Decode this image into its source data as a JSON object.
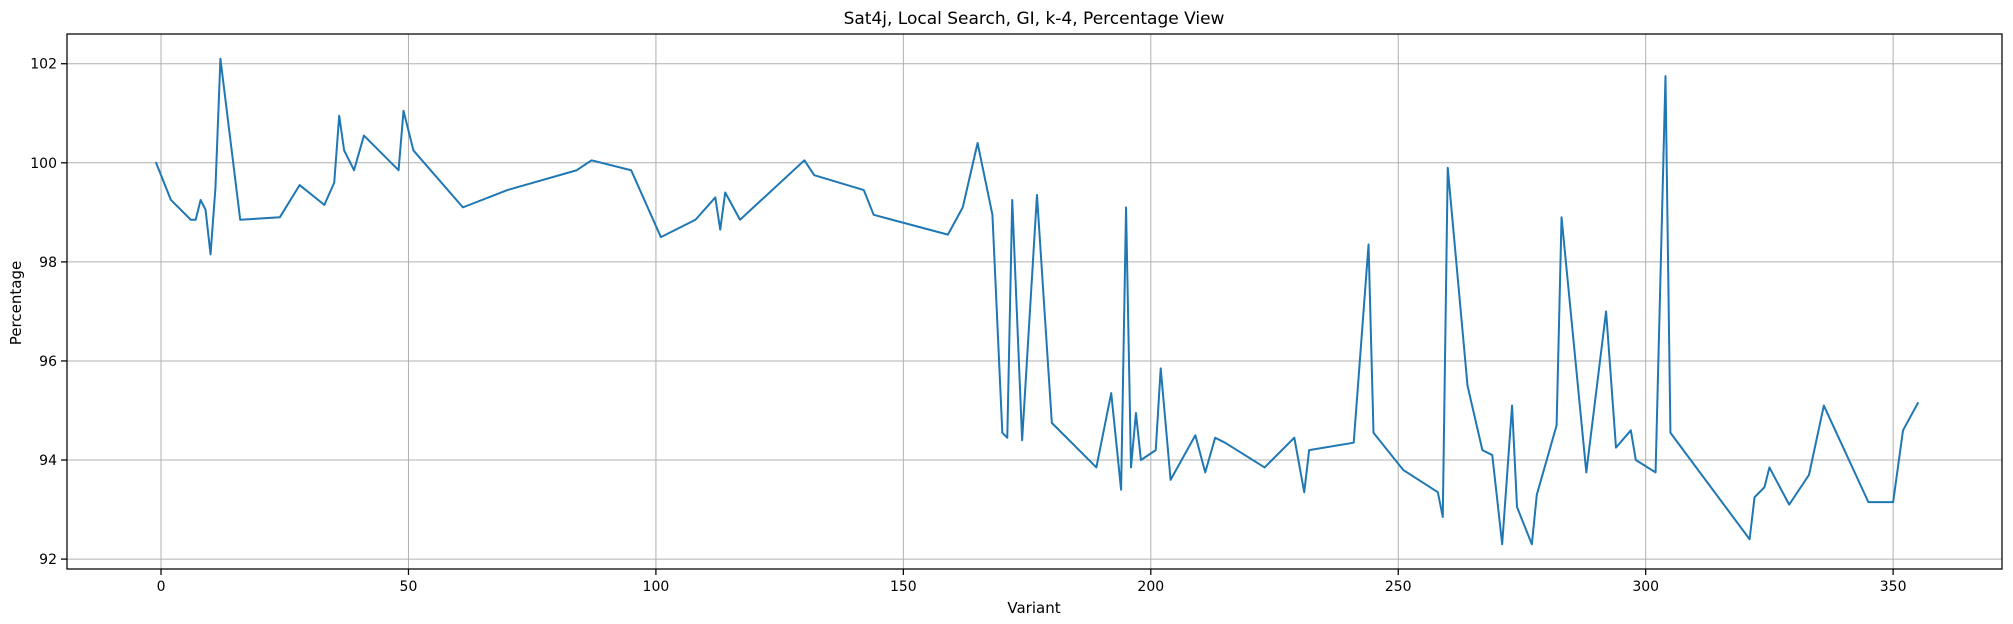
{
  "chart_data": {
    "type": "line",
    "title": "Sat4j, Local Search, GI, k-4, Percentage View",
    "xlabel": "Variant",
    "ylabel": "Percentage",
    "xlim": [
      -19,
      372
    ],
    "ylim": [
      91.8,
      102.6
    ],
    "xticks": [
      0,
      50,
      100,
      150,
      200,
      250,
      300,
      350
    ],
    "yticks": [
      92,
      94,
      96,
      98,
      100,
      102
    ],
    "grid": true,
    "series_color": "#1f77b4",
    "series": [
      {
        "x": [
          -1,
          2,
          6,
          7,
          8,
          9,
          10,
          11,
          12,
          16,
          24,
          28,
          33,
          35,
          36,
          37,
          39,
          41,
          48,
          49,
          51,
          61,
          70,
          84,
          87,
          95,
          101,
          108,
          112,
          113,
          114,
          117,
          130,
          132,
          142,
          144,
          159,
          162,
          165,
          168,
          170,
          171,
          172,
          174,
          177,
          180,
          189,
          192,
          194,
          195,
          196,
          197,
          198,
          201,
          202,
          204,
          209,
          211,
          213,
          215,
          223,
          229,
          231,
          232,
          241,
          244,
          245,
          251,
          258,
          259,
          260,
          264,
          267,
          269,
          271,
          273,
          274,
          277,
          278,
          282,
          283,
          288,
          292,
          294,
          297,
          298,
          302,
          304,
          305,
          321,
          322,
          324,
          325,
          329,
          333,
          336,
          345,
          350,
          352,
          355
        ],
        "y": [
          100.0,
          99.25,
          98.85,
          98.85,
          99.25,
          99.05,
          98.15,
          99.5,
          102.1,
          98.85,
          98.9,
          99.55,
          99.15,
          99.6,
          100.95,
          100.25,
          99.85,
          100.55,
          99.85,
          101.05,
          100.25,
          99.1,
          99.45,
          99.85,
          100.05,
          99.85,
          98.5,
          98.85,
          99.3,
          98.65,
          99.4,
          98.85,
          100.05,
          99.75,
          99.45,
          98.95,
          98.55,
          99.1,
          100.4,
          98.95,
          94.55,
          94.45,
          99.25,
          94.4,
          99.35,
          94.75,
          93.85,
          95.35,
          93.4,
          99.1,
          93.85,
          94.95,
          94.0,
          94.2,
          95.85,
          93.6,
          94.5,
          93.75,
          94.45,
          94.35,
          93.85,
          94.45,
          93.35,
          94.2,
          94.35,
          98.35,
          94.55,
          93.8,
          93.35,
          92.85,
          99.9,
          95.5,
          94.2,
          94.1,
          92.3,
          95.1,
          93.05,
          92.3,
          93.3,
          94.7,
          98.9,
          93.75,
          97.0,
          94.25,
          94.6,
          94.0,
          93.75,
          101.75,
          94.55,
          92.4,
          93.25,
          93.45,
          93.85,
          93.1,
          93.7,
          95.1,
          93.15,
          93.15,
          94.6,
          95.15
        ]
      }
    ]
  }
}
